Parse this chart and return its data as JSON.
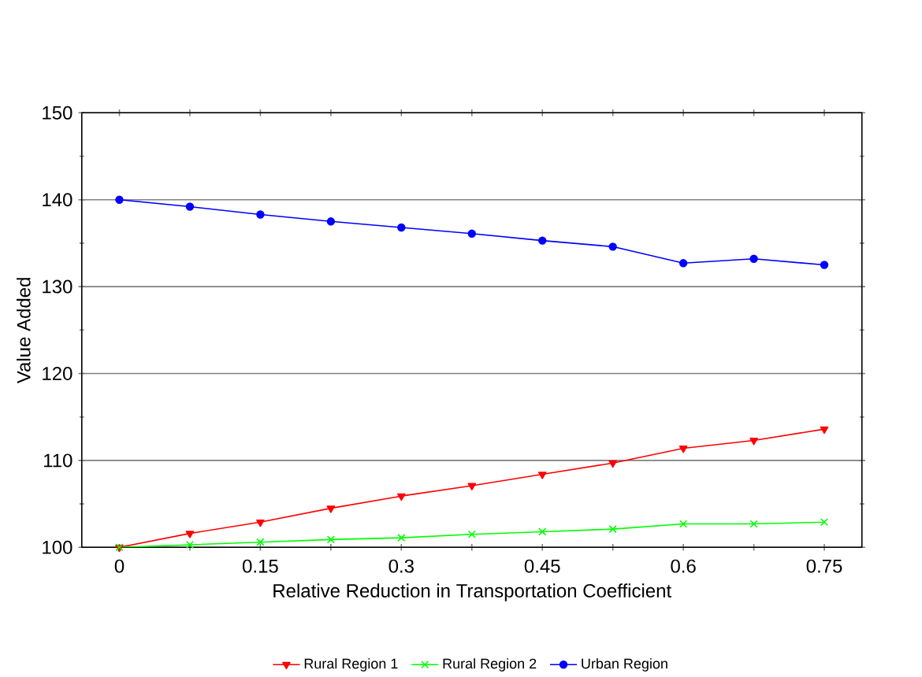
{
  "chart_data": {
    "type": "line",
    "xlabel": "Relative Reduction in Transportation Coefficient",
    "ylabel": "Value Added",
    "x": [
      0,
      0.075,
      0.15,
      0.225,
      0.3,
      0.375,
      0.45,
      0.525,
      0.6,
      0.675,
      0.75
    ],
    "series": [
      {
        "name": "Rural Region 1",
        "color": "#ff0000",
        "marker": "triangle",
        "values": [
          100,
          101.6,
          102.9,
          104.5,
          105.9,
          107.1,
          108.4,
          109.7,
          111.4,
          112.3,
          113.6
        ]
      },
      {
        "name": "Rural Region 2",
        "color": "#00ff00",
        "marker": "cross",
        "values": [
          100,
          100.3,
          100.6,
          100.9,
          101.1,
          101.5,
          101.8,
          102.1,
          102.7,
          102.7,
          102.9
        ]
      },
      {
        "name": "Urban Region",
        "color": "#0000ff",
        "marker": "circle",
        "values": [
          140,
          139.2,
          138.3,
          137.5,
          136.8,
          136.1,
          135.3,
          134.6,
          132.7,
          133.2,
          132.5
        ]
      }
    ],
    "xlim": [
      -0.04,
      0.79
    ],
    "ylim": [
      100,
      150
    ],
    "xticks": [
      0,
      {
        "value": 0.075,
        "label": null
      },
      0.15,
      {
        "value": 0.225,
        "label": null
      },
      0.3,
      {
        "value": 0.375,
        "label": null
      },
      0.45,
      {
        "value": 0.525,
        "label": null
      },
      0.6,
      {
        "value": 0.675,
        "label": null
      },
      0.75
    ],
    "yticks": [
      100,
      110,
      120,
      130,
      140,
      150
    ],
    "grid": "y",
    "legend": "bottom",
    "line_style": "solid"
  }
}
